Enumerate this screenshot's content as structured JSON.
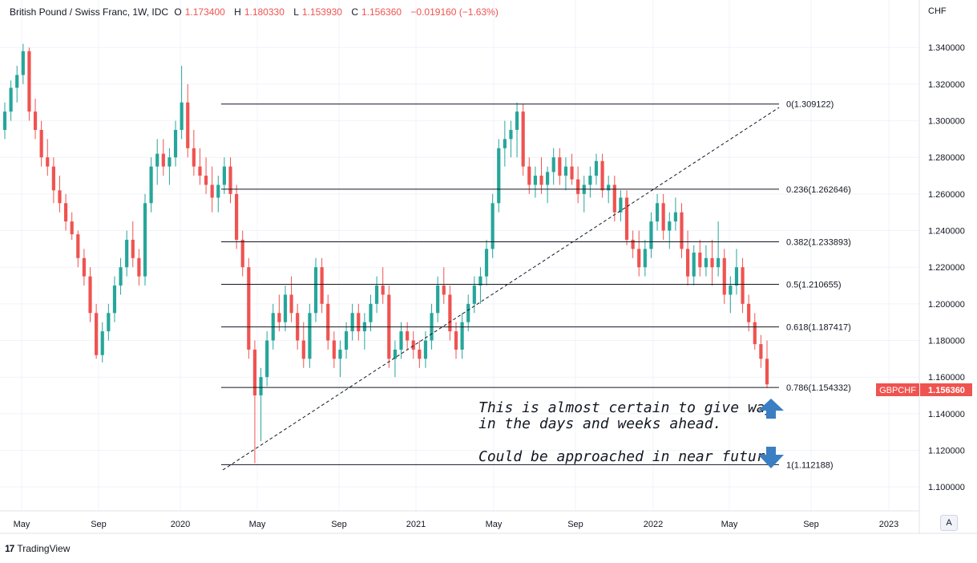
{
  "header": {
    "title": "British Pound / Swiss Franc, 1W, IDC",
    "o_label": "O",
    "o_value": "1.173400",
    "h_label": "H",
    "h_value": "1.180330",
    "l_label": "L",
    "l_value": "1.153930",
    "c_label": "C",
    "c_value": "1.156360",
    "change": "−0.019160 (−1.63%)"
  },
  "currency": "CHF",
  "brand": "TradingView",
  "auto_button": "A",
  "price_tag": {
    "symbol": "GBPCHF",
    "price": "1.156360"
  },
  "colors": {
    "up": "#26a69a",
    "down": "#ef5350",
    "arrow": "#3a7ec4",
    "tag": "#ef5350"
  },
  "icons": {
    "logo": "tradingview-logo-icon",
    "up_arrow": "up-arrow-icon",
    "down_arrow": "down-arrow-icon"
  },
  "chart_data": {
    "type": "candlestick",
    "ylim": [
      1.09,
      1.355
    ],
    "y_ticks": [
      "1.100000",
      "1.120000",
      "1.140000",
      "1.160000",
      "1.180000",
      "1.200000",
      "1.220000",
      "1.240000",
      "1.260000",
      "1.280000",
      "1.300000",
      "1.320000",
      "1.340000"
    ],
    "x_ticks": [
      "May",
      "Sep",
      "2020",
      "May",
      "Sep",
      "2021",
      "May",
      "Sep",
      "2022",
      "May",
      "Sep",
      "2023"
    ],
    "fibonacci": {
      "levels": [
        {
          "ratio": "0",
          "price": 1.309122,
          "label": "0(1.309122)"
        },
        {
          "ratio": "0.236",
          "price": 1.262646,
          "label": "0.236(1.262646)"
        },
        {
          "ratio": "0.382",
          "price": 1.233893,
          "label": "0.382(1.233893)"
        },
        {
          "ratio": "0.5",
          "price": 1.210655,
          "label": "0.5(1.210655)"
        },
        {
          "ratio": "0.618",
          "price": 1.187417,
          "label": "0.618(1.187417)"
        },
        {
          "ratio": "0.786",
          "price": 1.154332,
          "label": "0.786(1.154332)"
        },
        {
          "ratio": "1",
          "price": 1.112188,
          "label": "1(1.112188)"
        }
      ]
    },
    "annotations": [
      {
        "line1": "This is almost certain to give way",
        "line2": "in the days and weeks ahead.",
        "arrow": "up"
      },
      {
        "line1": "Could be approached in near future.",
        "arrow": "down"
      }
    ],
    "candles_note": "Weekly OHLC candles (approximate), roughly Apr 2019 – Jul 2022",
    "candles": [
      [
        1.295,
        1.31,
        1.29,
        1.305
      ],
      [
        1.305,
        1.322,
        1.3,
        1.318
      ],
      [
        1.318,
        1.33,
        1.31,
        1.325
      ],
      [
        1.325,
        1.342,
        1.32,
        1.338
      ],
      [
        1.338,
        1.34,
        1.3,
        1.305
      ],
      [
        1.305,
        1.312,
        1.29,
        1.295
      ],
      [
        1.295,
        1.3,
        1.275,
        1.28
      ],
      [
        1.28,
        1.29,
        1.27,
        1.275
      ],
      [
        1.275,
        1.28,
        1.255,
        1.262
      ],
      [
        1.262,
        1.27,
        1.25,
        1.255
      ],
      [
        1.255,
        1.26,
        1.24,
        1.245
      ],
      [
        1.245,
        1.25,
        1.235,
        1.238
      ],
      [
        1.238,
        1.24,
        1.22,
        1.225
      ],
      [
        1.225,
        1.23,
        1.21,
        1.215
      ],
      [
        1.215,
        1.22,
        1.19,
        1.195
      ],
      [
        1.195,
        1.2,
        1.17,
        1.172
      ],
      [
        1.172,
        1.19,
        1.168,
        1.185
      ],
      [
        1.185,
        1.2,
        1.18,
        1.195
      ],
      [
        1.195,
        1.215,
        1.19,
        1.21
      ],
      [
        1.21,
        1.225,
        1.205,
        1.22
      ],
      [
        1.22,
        1.24,
        1.215,
        1.235
      ],
      [
        1.235,
        1.245,
        1.22,
        1.225
      ],
      [
        1.225,
        1.23,
        1.21,
        1.215
      ],
      [
        1.215,
        1.26,
        1.21,
        1.255
      ],
      [
        1.255,
        1.28,
        1.25,
        1.275
      ],
      [
        1.275,
        1.29,
        1.265,
        1.282
      ],
      [
        1.282,
        1.29,
        1.27,
        1.275
      ],
      [
        1.275,
        1.285,
        1.265,
        1.28
      ],
      [
        1.28,
        1.3,
        1.275,
        1.295
      ],
      [
        1.295,
        1.33,
        1.29,
        1.31
      ],
      [
        1.31,
        1.32,
        1.28,
        1.285
      ],
      [
        1.285,
        1.295,
        1.27,
        1.275
      ],
      [
        1.275,
        1.285,
        1.265,
        1.27
      ],
      [
        1.27,
        1.28,
        1.26,
        1.265
      ],
      [
        1.265,
        1.275,
        1.25,
        1.258
      ],
      [
        1.258,
        1.27,
        1.25,
        1.265
      ],
      [
        1.265,
        1.28,
        1.26,
        1.275
      ],
      [
        1.275,
        1.28,
        1.255,
        1.26
      ],
      [
        1.26,
        1.265,
        1.23,
        1.235
      ],
      [
        1.235,
        1.24,
        1.215,
        1.22
      ],
      [
        1.22,
        1.225,
        1.17,
        1.175
      ],
      [
        1.175,
        1.18,
        1.113,
        1.15
      ],
      [
        1.15,
        1.165,
        1.125,
        1.16
      ],
      [
        1.16,
        1.185,
        1.155,
        1.18
      ],
      [
        1.18,
        1.2,
        1.175,
        1.195
      ],
      [
        1.195,
        1.205,
        1.185,
        1.19
      ],
      [
        1.19,
        1.21,
        1.185,
        1.205
      ],
      [
        1.205,
        1.215,
        1.19,
        1.195
      ],
      [
        1.195,
        1.2,
        1.175,
        1.18
      ],
      [
        1.18,
        1.19,
        1.165,
        1.17
      ],
      [
        1.17,
        1.2,
        1.165,
        1.195
      ],
      [
        1.195,
        1.225,
        1.19,
        1.22
      ],
      [
        1.22,
        1.225,
        1.195,
        1.2
      ],
      [
        1.2,
        1.205,
        1.175,
        1.18
      ],
      [
        1.18,
        1.185,
        1.165,
        1.17
      ],
      [
        1.17,
        1.18,
        1.16,
        1.175
      ],
      [
        1.175,
        1.19,
        1.17,
        1.185
      ],
      [
        1.185,
        1.2,
        1.18,
        1.195
      ],
      [
        1.195,
        1.2,
        1.18,
        1.185
      ],
      [
        1.185,
        1.195,
        1.175,
        1.19
      ],
      [
        1.19,
        1.205,
        1.185,
        1.2
      ],
      [
        1.2,
        1.215,
        1.195,
        1.21
      ],
      [
        1.21,
        1.22,
        1.2,
        1.205
      ],
      [
        1.205,
        1.21,
        1.165,
        1.17
      ],
      [
        1.17,
        1.18,
        1.16,
        1.175
      ],
      [
        1.175,
        1.19,
        1.17,
        1.185
      ],
      [
        1.185,
        1.19,
        1.175,
        1.18
      ],
      [
        1.18,
        1.185,
        1.17,
        1.175
      ],
      [
        1.175,
        1.18,
        1.165,
        1.17
      ],
      [
        1.17,
        1.185,
        1.165,
        1.18
      ],
      [
        1.18,
        1.2,
        1.175,
        1.195
      ],
      [
        1.195,
        1.215,
        1.19,
        1.21
      ],
      [
        1.21,
        1.22,
        1.2,
        1.205
      ],
      [
        1.205,
        1.21,
        1.18,
        1.185
      ],
      [
        1.185,
        1.19,
        1.17,
        1.175
      ],
      [
        1.175,
        1.195,
        1.17,
        1.19
      ],
      [
        1.19,
        1.205,
        1.185,
        1.2
      ],
      [
        1.2,
        1.215,
        1.195,
        1.21
      ],
      [
        1.21,
        1.22,
        1.2,
        1.215
      ],
      [
        1.215,
        1.235,
        1.21,
        1.23
      ],
      [
        1.23,
        1.26,
        1.225,
        1.255
      ],
      [
        1.255,
        1.29,
        1.25,
        1.285
      ],
      [
        1.285,
        1.3,
        1.275,
        1.29
      ],
      [
        1.29,
        1.3,
        1.28,
        1.295
      ],
      [
        1.295,
        1.31,
        1.28,
        1.305
      ],
      [
        1.305,
        1.309,
        1.27,
        1.275
      ],
      [
        1.275,
        1.28,
        1.26,
        1.265
      ],
      [
        1.265,
        1.275,
        1.258,
        1.27
      ],
      [
        1.27,
        1.28,
        1.26,
        1.265
      ],
      [
        1.265,
        1.275,
        1.255,
        1.272
      ],
      [
        1.272,
        1.285,
        1.265,
        1.28
      ],
      [
        1.28,
        1.285,
        1.265,
        1.27
      ],
      [
        1.27,
        1.28,
        1.262,
        1.275
      ],
      [
        1.275,
        1.282,
        1.265,
        1.268
      ],
      [
        1.268,
        1.275,
        1.255,
        1.26
      ],
      [
        1.26,
        1.27,
        1.25,
        1.265
      ],
      [
        1.265,
        1.275,
        1.258,
        1.27
      ],
      [
        1.27,
        1.282,
        1.265,
        1.278
      ],
      [
        1.278,
        1.282,
        1.258,
        1.262
      ],
      [
        1.262,
        1.27,
        1.255,
        1.265
      ],
      [
        1.265,
        1.27,
        1.245,
        1.25
      ],
      [
        1.25,
        1.262,
        1.245,
        1.258
      ],
      [
        1.258,
        1.262,
        1.232,
        1.235
      ],
      [
        1.235,
        1.24,
        1.225,
        1.23
      ],
      [
        1.23,
        1.24,
        1.215,
        1.22
      ],
      [
        1.22,
        1.235,
        1.215,
        1.23
      ],
      [
        1.23,
        1.25,
        1.225,
        1.245
      ],
      [
        1.245,
        1.26,
        1.24,
        1.255
      ],
      [
        1.255,
        1.26,
        1.235,
        1.24
      ],
      [
        1.24,
        1.25,
        1.23,
        1.245
      ],
      [
        1.245,
        1.258,
        1.24,
        1.25
      ],
      [
        1.25,
        1.255,
        1.225,
        1.23
      ],
      [
        1.23,
        1.24,
        1.21,
        1.215
      ],
      [
        1.215,
        1.232,
        1.21,
        1.228
      ],
      [
        1.228,
        1.235,
        1.215,
        1.22
      ],
      [
        1.22,
        1.232,
        1.215,
        1.225
      ],
      [
        1.225,
        1.235,
        1.21,
        1.22
      ],
      [
        1.22,
        1.245,
        1.215,
        1.225
      ],
      [
        1.225,
        1.23,
        1.2,
        1.205
      ],
      [
        1.205,
        1.215,
        1.195,
        1.21
      ],
      [
        1.21,
        1.23,
        1.205,
        1.22
      ],
      [
        1.22,
        1.225,
        1.195,
        1.2
      ],
      [
        1.2,
        1.205,
        1.185,
        1.19
      ],
      [
        1.19,
        1.195,
        1.175,
        1.178
      ],
      [
        1.178,
        1.183,
        1.165,
        1.17
      ],
      [
        1.17,
        1.18,
        1.154,
        1.156
      ]
    ]
  }
}
